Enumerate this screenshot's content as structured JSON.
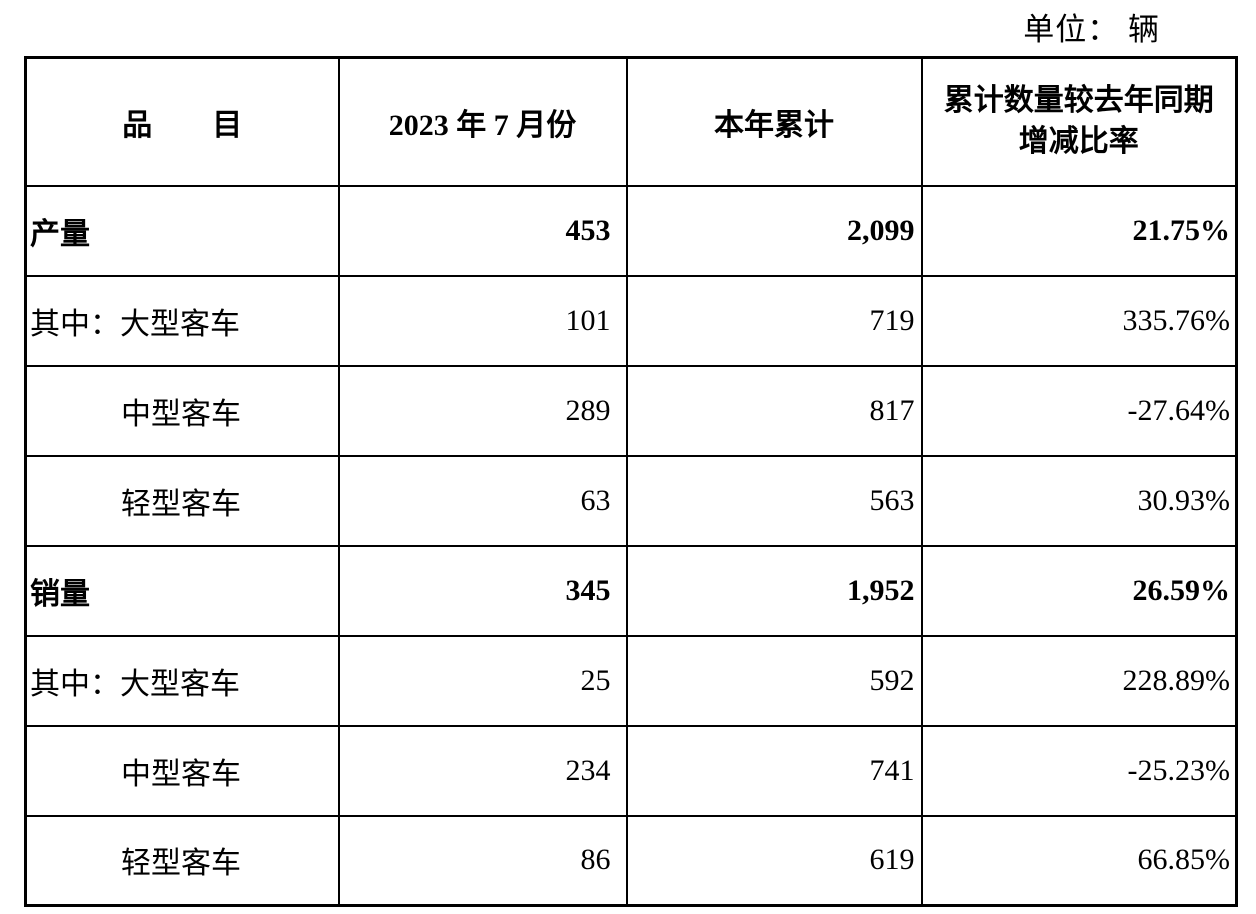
{
  "unit_label": "单位： 辆",
  "table": {
    "headers": {
      "category": "品　　目",
      "month": "2023 年 7 月份",
      "ytd": "本年累计",
      "yoy": "累计数量较去年同期\n增减比率"
    },
    "rows": [
      {
        "label": "产量",
        "month": "453",
        "ytd": "2,099",
        "yoy": "21.75%"
      },
      {
        "label": "其中：大型客车",
        "month": "101",
        "ytd": "719",
        "yoy": "335.76%"
      },
      {
        "label": "中型客车",
        "month": "289",
        "ytd": "817",
        "yoy": "-27.64%"
      },
      {
        "label": "轻型客车",
        "month": "63",
        "ytd": "563",
        "yoy": "30.93%"
      },
      {
        "label": "销量",
        "month": "345",
        "ytd": "1,952",
        "yoy": "26.59%"
      },
      {
        "label": "其中：大型客车",
        "month": "25",
        "ytd": "592",
        "yoy": "228.89%"
      },
      {
        "label": "中型客车",
        "month": "234",
        "ytd": "741",
        "yoy": "-25.23%"
      },
      {
        "label": "轻型客车",
        "month": "86",
        "ytd": "619",
        "yoy": "66.85%"
      }
    ]
  }
}
